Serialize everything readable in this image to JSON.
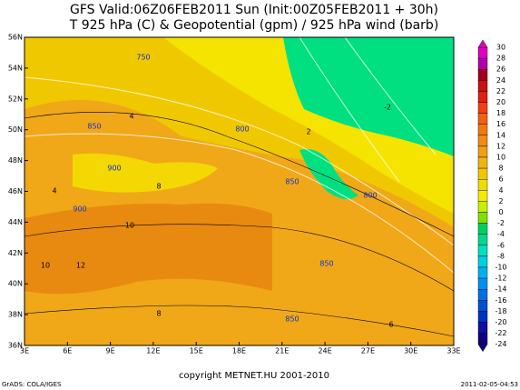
{
  "header": {
    "line1": "GFS Valid:06Z06FEB2011 Sun (Init:00Z05FEB2011 + 30h)",
    "line2": "T 925 hPa (C) & Geopotential (gpm) / 925 hPa wind (barb)"
  },
  "map": {
    "lat_labels": [
      "56N",
      "54N",
      "52N",
      "50N",
      "48N",
      "46N",
      "44N",
      "42N",
      "40N",
      "38N",
      "36N"
    ],
    "lon_labels": [
      "3E",
      "6E",
      "9E",
      "12E",
      "15E",
      "18E",
      "21E",
      "24E",
      "27E",
      "30E",
      "33E"
    ],
    "geopotential_labels": [
      "750",
      "800",
      "850",
      "900",
      "850",
      "800",
      "900",
      "850",
      "850"
    ],
    "temperature_labels": [
      "4",
      "-2",
      "10",
      "12",
      "10",
      "8",
      "6",
      "8",
      "2",
      "4"
    ]
  },
  "colorbar": {
    "labels": [
      30,
      28,
      26,
      24,
      22,
      20,
      18,
      16,
      14,
      12,
      10,
      8,
      6,
      4,
      2,
      0,
      -2,
      -4,
      -6,
      -8,
      -10,
      -12,
      -14,
      -16,
      -18,
      -20,
      -22,
      -24
    ]
  },
  "footer": {
    "copyright": "copyright METNET.HU 2001-2010",
    "left": "GrADS: COLA/IGES",
    "right": "2011-02-05-04:53"
  }
}
